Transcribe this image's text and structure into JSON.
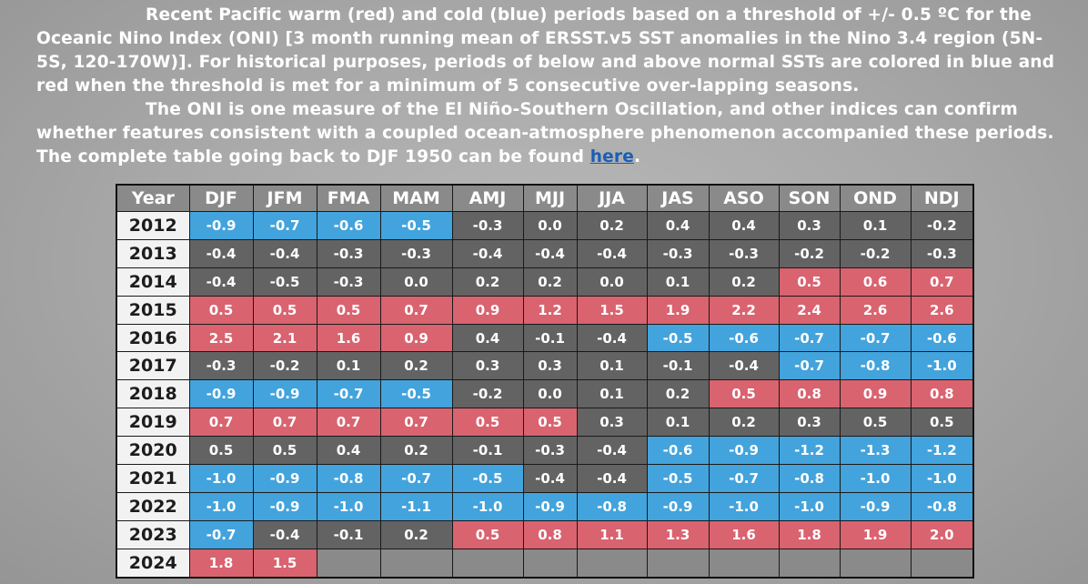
{
  "intro": {
    "p1": "Recent Pacific warm (red) and cold (blue) periods based on a threshold of +/- 0.5 ºC for the Oceanic Nino Index (ONI) [3 month running mean of ERSST.v5 SST anomalies in the Nino 3.4 region (5N-5S, 120-170W)]. For historical purposes, periods of below and above normal SSTs are colored in blue and red when the threshold is met for a minimum of 5 consecutive over-lapping seasons.",
    "p2": "The ONI is one measure of the El Niño-Southern Oscillation, and other indices can confirm whether features consistent with a coupled ocean-atmosphere phenomenon accompanied these periods. The complete table going back to DJF 1950 can be found",
    "link": "here",
    "end": "."
  },
  "colors": {
    "warm": "#d9636f",
    "cold": "#43a3dc",
    "neutral": "#636363",
    "link": "#1a5fb4"
  },
  "table": {
    "headers": [
      "Year",
      "DJF",
      "JFM",
      "FMA",
      "MAM",
      "AMJ",
      "MJJ",
      "JJA",
      "JAS",
      "ASO",
      "SON",
      "OND",
      "NDJ"
    ],
    "rows": [
      {
        "year": "2012",
        "values": [
          "-0.9",
          "-0.7",
          "-0.6",
          "-0.5",
          "-0.3",
          "0.0",
          "0.2",
          "0.4",
          "0.4",
          "0.3",
          "0.1",
          "-0.2"
        ],
        "phase": [
          "cold",
          "cold",
          "cold",
          "cold",
          "neutral",
          "neutral",
          "neutral",
          "neutral",
          "neutral",
          "neutral",
          "neutral",
          "neutral"
        ]
      },
      {
        "year": "2013",
        "values": [
          "-0.4",
          "-0.4",
          "-0.3",
          "-0.3",
          "-0.4",
          "-0.4",
          "-0.4",
          "-0.3",
          "-0.3",
          "-0.2",
          "-0.2",
          "-0.3"
        ],
        "phase": [
          "neutral",
          "neutral",
          "neutral",
          "neutral",
          "neutral",
          "neutral",
          "neutral",
          "neutral",
          "neutral",
          "neutral",
          "neutral",
          "neutral"
        ]
      },
      {
        "year": "2014",
        "values": [
          "-0.4",
          "-0.5",
          "-0.3",
          "0.0",
          "0.2",
          "0.2",
          "0.0",
          "0.1",
          "0.2",
          "0.5",
          "0.6",
          "0.7"
        ],
        "phase": [
          "neutral",
          "neutral",
          "neutral",
          "neutral",
          "neutral",
          "neutral",
          "neutral",
          "neutral",
          "neutral",
          "warm",
          "warm",
          "warm"
        ]
      },
      {
        "year": "2015",
        "values": [
          "0.5",
          "0.5",
          "0.5",
          "0.7",
          "0.9",
          "1.2",
          "1.5",
          "1.9",
          "2.2",
          "2.4",
          "2.6",
          "2.6"
        ],
        "phase": [
          "warm",
          "warm",
          "warm",
          "warm",
          "warm",
          "warm",
          "warm",
          "warm",
          "warm",
          "warm",
          "warm",
          "warm"
        ]
      },
      {
        "year": "2016",
        "values": [
          "2.5",
          "2.1",
          "1.6",
          "0.9",
          "0.4",
          "-0.1",
          "-0.4",
          "-0.5",
          "-0.6",
          "-0.7",
          "-0.7",
          "-0.6"
        ],
        "phase": [
          "warm",
          "warm",
          "warm",
          "warm",
          "neutral",
          "neutral",
          "neutral",
          "cold",
          "cold",
          "cold",
          "cold",
          "cold"
        ]
      },
      {
        "year": "2017",
        "values": [
          "-0.3",
          "-0.2",
          "0.1",
          "0.2",
          "0.3",
          "0.3",
          "0.1",
          "-0.1",
          "-0.4",
          "-0.7",
          "-0.8",
          "-1.0"
        ],
        "phase": [
          "neutral",
          "neutral",
          "neutral",
          "neutral",
          "neutral",
          "neutral",
          "neutral",
          "neutral",
          "neutral",
          "cold",
          "cold",
          "cold"
        ]
      },
      {
        "year": "2018",
        "values": [
          "-0.9",
          "-0.9",
          "-0.7",
          "-0.5",
          "-0.2",
          "0.0",
          "0.1",
          "0.2",
          "0.5",
          "0.8",
          "0.9",
          "0.8"
        ],
        "phase": [
          "cold",
          "cold",
          "cold",
          "cold",
          "neutral",
          "neutral",
          "neutral",
          "neutral",
          "warm",
          "warm",
          "warm",
          "warm"
        ]
      },
      {
        "year": "2019",
        "values": [
          "0.7",
          "0.7",
          "0.7",
          "0.7",
          "0.5",
          "0.5",
          "0.3",
          "0.1",
          "0.2",
          "0.3",
          "0.5",
          "0.5"
        ],
        "phase": [
          "warm",
          "warm",
          "warm",
          "warm",
          "warm",
          "warm",
          "neutral",
          "neutral",
          "neutral",
          "neutral",
          "neutral",
          "neutral"
        ]
      },
      {
        "year": "2020",
        "values": [
          "0.5",
          "0.5",
          "0.4",
          "0.2",
          "-0.1",
          "-0.3",
          "-0.4",
          "-0.6",
          "-0.9",
          "-1.2",
          "-1.3",
          "-1.2"
        ],
        "phase": [
          "neutral",
          "neutral",
          "neutral",
          "neutral",
          "neutral",
          "neutral",
          "neutral",
          "cold",
          "cold",
          "cold",
          "cold",
          "cold"
        ]
      },
      {
        "year": "2021",
        "values": [
          "-1.0",
          "-0.9",
          "-0.8",
          "-0.7",
          "-0.5",
          "-0.4",
          "-0.4",
          "-0.5",
          "-0.7",
          "-0.8",
          "-1.0",
          "-1.0"
        ],
        "phase": [
          "cold",
          "cold",
          "cold",
          "cold",
          "cold",
          "neutral",
          "neutral",
          "cold",
          "cold",
          "cold",
          "cold",
          "cold"
        ]
      },
      {
        "year": "2022",
        "values": [
          "-1.0",
          "-0.9",
          "-1.0",
          "-1.1",
          "-1.0",
          "-0.9",
          "-0.8",
          "-0.9",
          "-1.0",
          "-1.0",
          "-0.9",
          "-0.8"
        ],
        "phase": [
          "cold",
          "cold",
          "cold",
          "cold",
          "cold",
          "cold",
          "cold",
          "cold",
          "cold",
          "cold",
          "cold",
          "cold"
        ]
      },
      {
        "year": "2023",
        "values": [
          "-0.7",
          "-0.4",
          "-0.1",
          "0.2",
          "0.5",
          "0.8",
          "1.1",
          "1.3",
          "1.6",
          "1.8",
          "1.9",
          "2.0"
        ],
        "phase": [
          "cold",
          "neutral",
          "neutral",
          "neutral",
          "warm",
          "warm",
          "warm",
          "warm",
          "warm",
          "warm",
          "warm",
          "warm"
        ]
      },
      {
        "year": "2024",
        "values": [
          "1.8",
          "1.5",
          "",
          "",
          "",
          "",
          "",
          "",
          "",
          "",
          "",
          ""
        ],
        "phase": [
          "warm",
          "warm",
          "empty",
          "empty",
          "empty",
          "empty",
          "empty",
          "empty",
          "empty",
          "empty",
          "empty",
          "empty"
        ]
      }
    ]
  }
}
